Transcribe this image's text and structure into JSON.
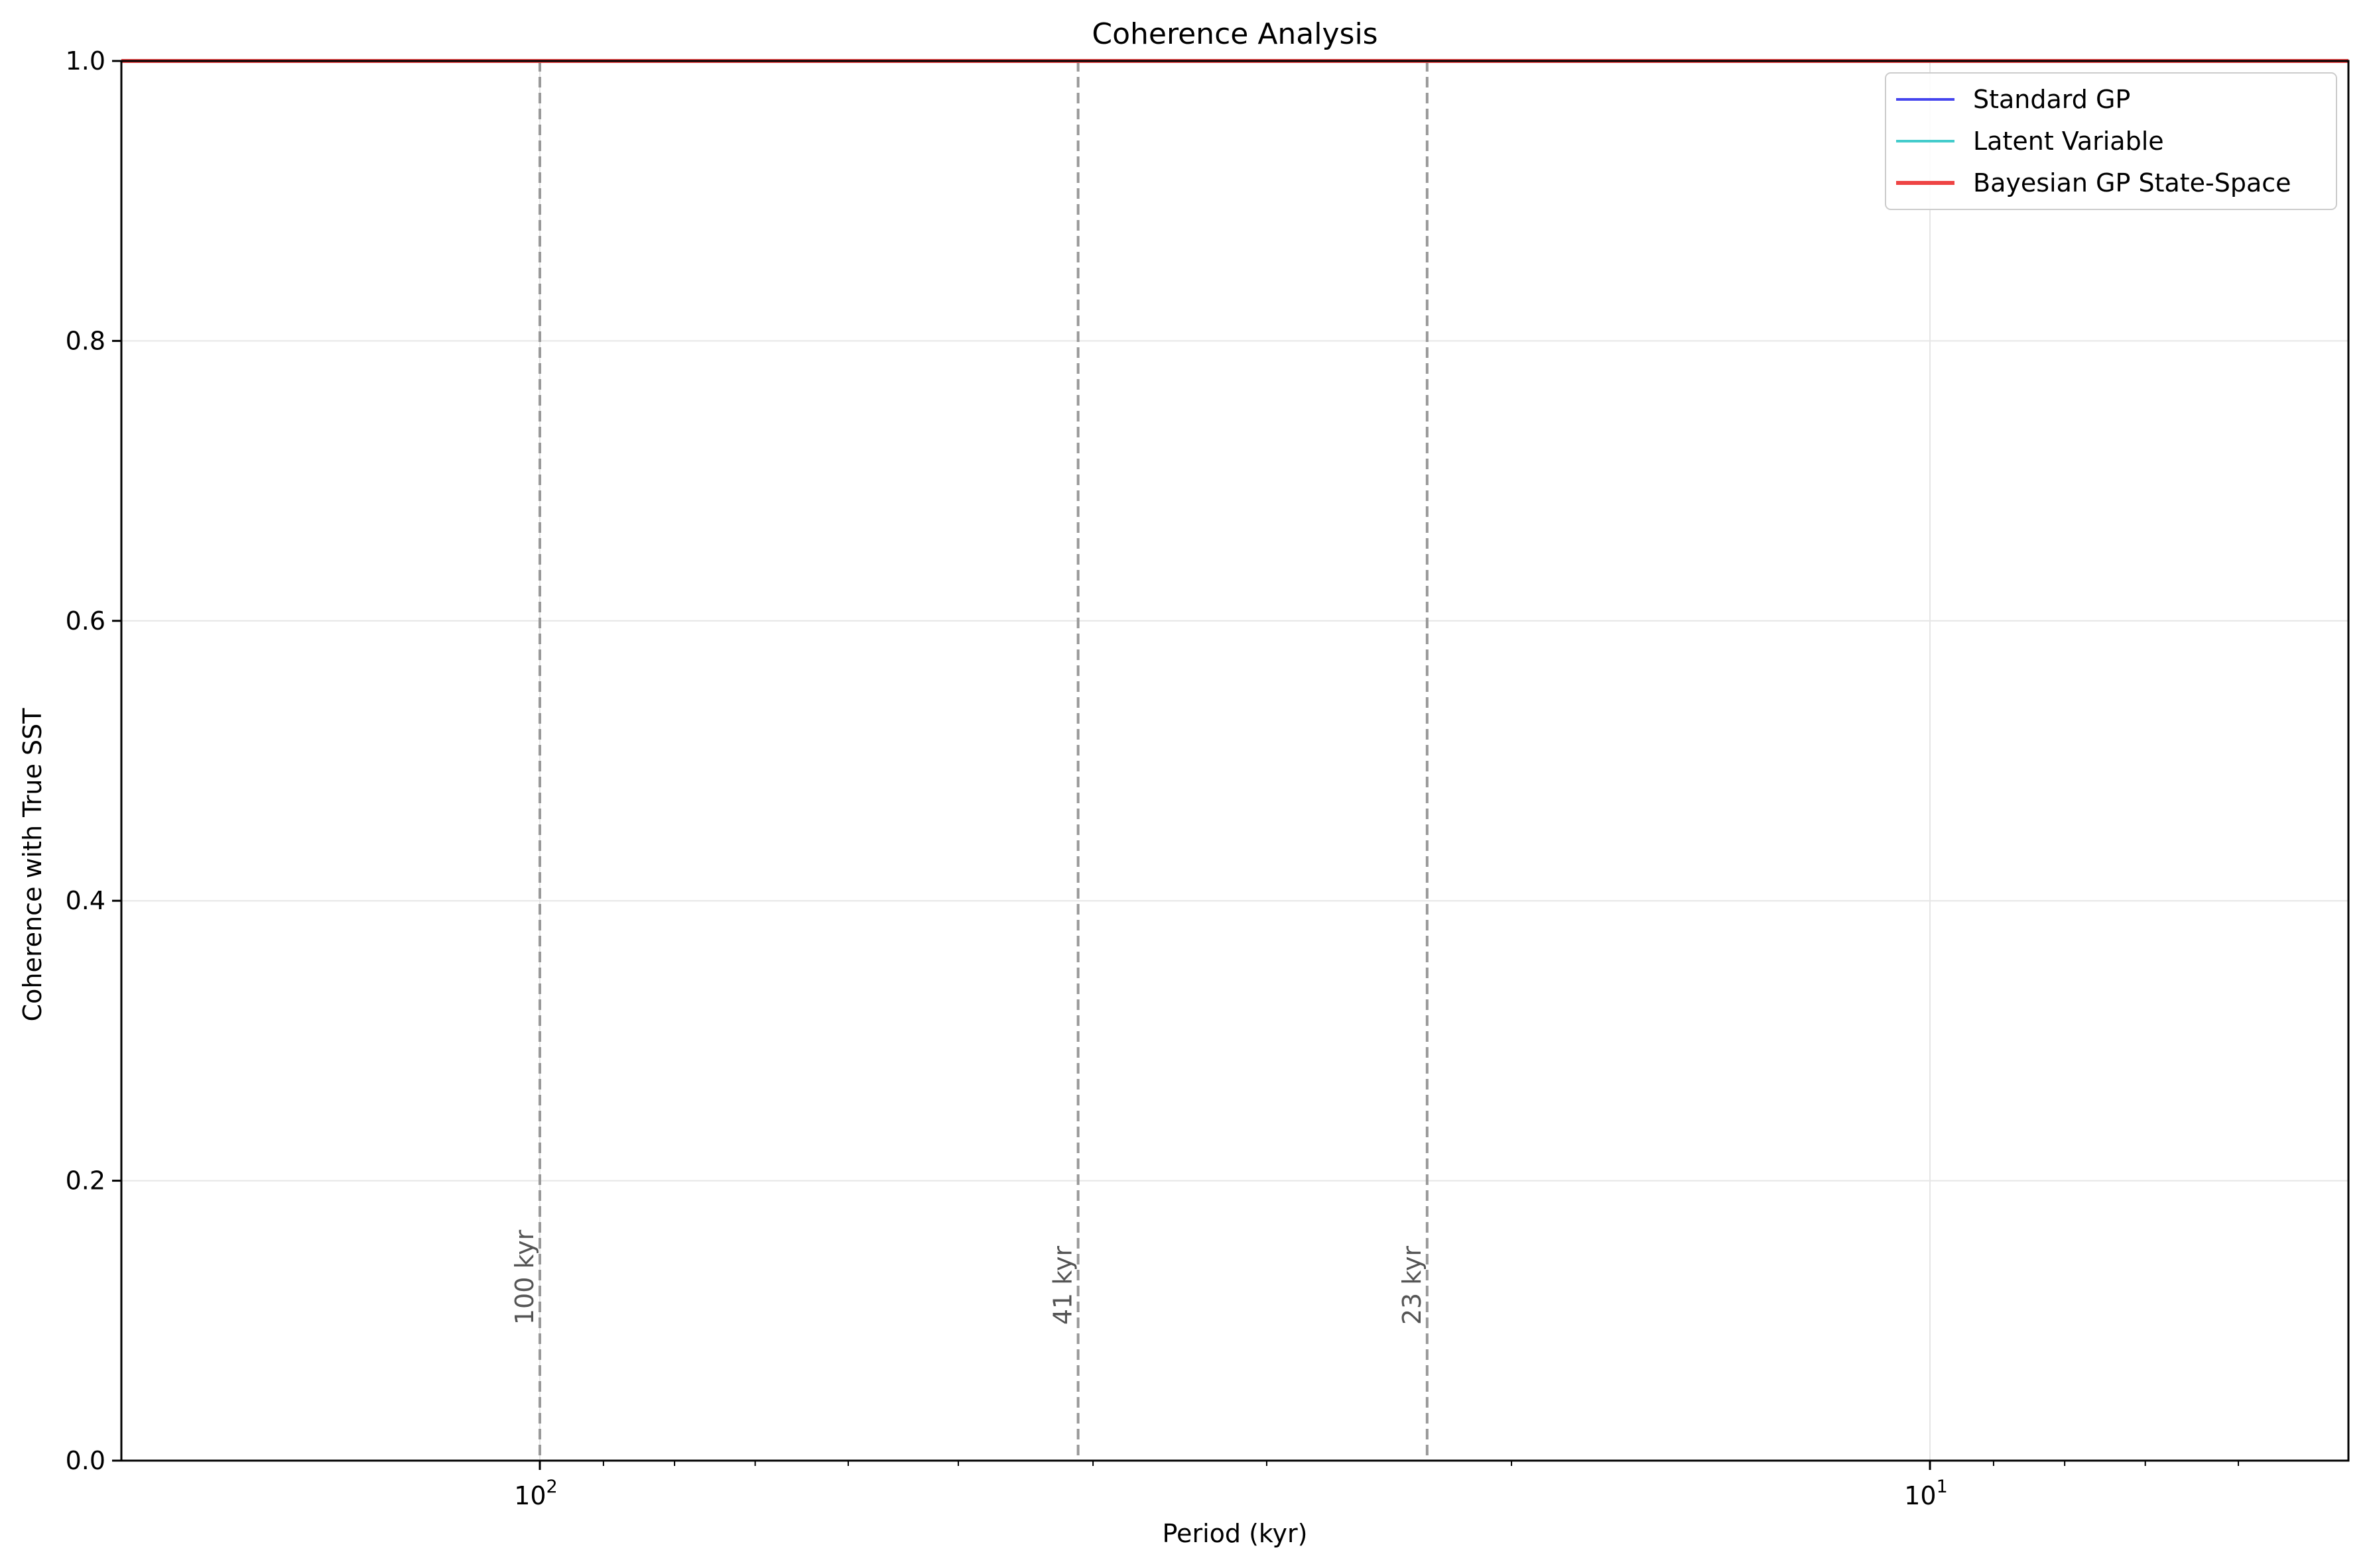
{
  "chart_data": {
    "type": "line",
    "title": "Coherence Analysis",
    "xlabel": "Period (kyr)",
    "ylabel": "Coherence with True SST",
    "x_scale": "log",
    "x_reversed": true,
    "xlim": [
      200,
      5
    ],
    "ylim": [
      0,
      1
    ],
    "x_ticks": [
      {
        "value": 100,
        "base": "10",
        "exp": "2"
      },
      {
        "value": 10,
        "base": "10",
        "exp": "1"
      }
    ],
    "y_ticks": [
      {
        "value": 0,
        "label": "0.0"
      },
      {
        "value": 0.2,
        "label": "0.2"
      },
      {
        "value": 0.4,
        "label": "0.4"
      },
      {
        "value": 0.6,
        "label": "0.6"
      },
      {
        "value": 0.8,
        "label": "0.8"
      },
      {
        "value": 1,
        "label": "1.0"
      }
    ],
    "grid": true,
    "legend_position": "top-right",
    "series": [
      {
        "name": "Standard GP",
        "color": "#4444ee",
        "x": [
          200,
          5
        ],
        "values": [
          1.0,
          1.0
        ]
      },
      {
        "name": "Latent Variable",
        "color": "#44cccc",
        "x": [
          200,
          5
        ],
        "values": [
          1.0,
          1.0
        ]
      },
      {
        "name": "Bayesian GP State-Space",
        "color": "#ee4444",
        "x": [
          200,
          5
        ],
        "values": [
          1.0,
          1.0
        ]
      }
    ],
    "reference_lines": [
      {
        "period": 100,
        "label": "100 kyr"
      },
      {
        "period": 41,
        "label": "41 kyr"
      },
      {
        "period": 23,
        "label": "23 kyr"
      }
    ]
  }
}
